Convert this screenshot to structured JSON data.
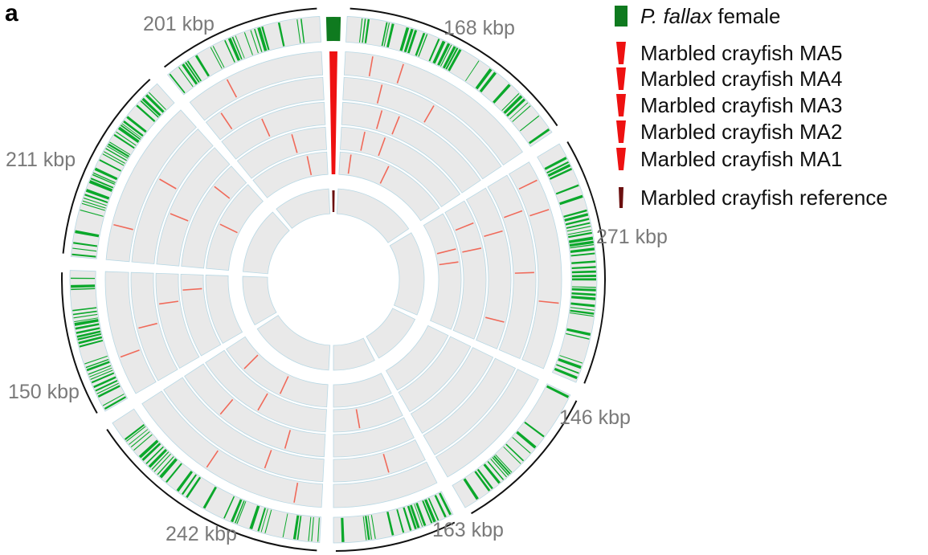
{
  "panel_label": "a",
  "segments": [
    {
      "label": "168 kbp"
    },
    {
      "label": "271 kbp"
    },
    {
      "label": "146 kbp"
    },
    {
      "label": "163 kbp"
    },
    {
      "label": "242 kbp"
    },
    {
      "label": "150 kbp"
    },
    {
      "label": "211 kbp"
    },
    {
      "label": "201 kbp"
    }
  ],
  "legend": [
    {
      "italic": "P. fallax",
      "text": " female",
      "color": "#1a8a1a"
    },
    {
      "italic": "",
      "text": "Marbled crayfish MA5",
      "color": "#ee1111"
    },
    {
      "italic": "",
      "text": "Marbled crayfish MA4",
      "color": "#ee1111"
    },
    {
      "italic": "",
      "text": "Marbled crayfish MA3",
      "color": "#ee1111"
    },
    {
      "italic": "",
      "text": "Marbled crayfish MA2",
      "color": "#ee1111"
    },
    {
      "italic": "",
      "text": "Marbled crayfish MA1",
      "color": "#ee1111"
    },
    {
      "italic": "",
      "text": "Marbled crayfish reference",
      "color": "#6b0f0f"
    }
  ],
  "colors": {
    "fallax": "#0ba82b",
    "fallax_dark": "#0f7a1f",
    "marbled": "#f06a5a",
    "marbled_bright": "#ee1111",
    "reference": "#6b0f0f",
    "track_bg": "#e9e9e9",
    "track_border": "#b8d8e4"
  }
}
